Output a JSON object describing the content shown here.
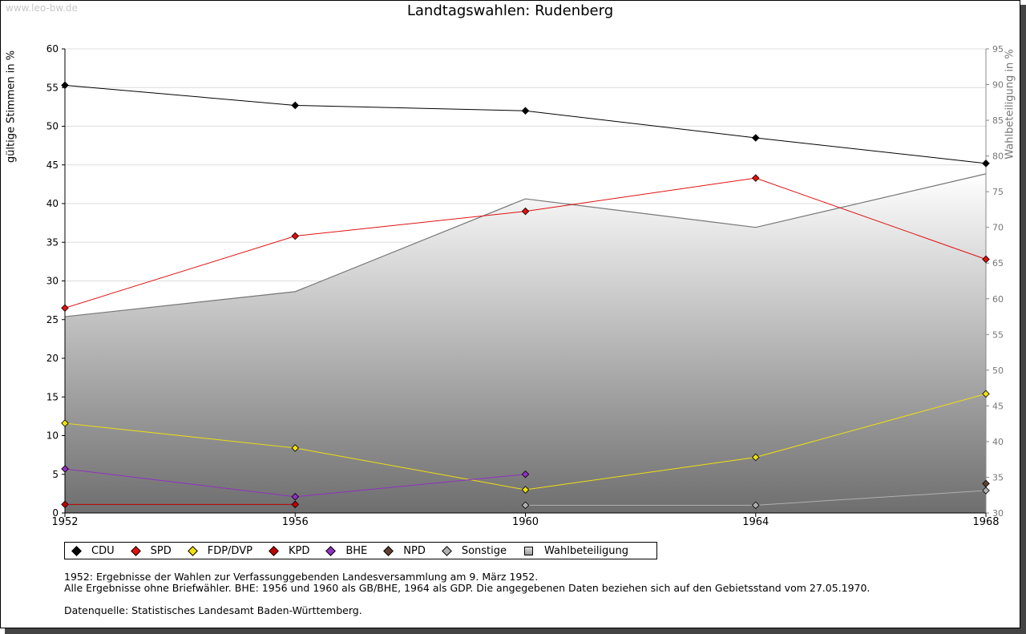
{
  "watermark": "www.leo-bw.de",
  "chart_data": {
    "type": "line",
    "title": "Landtagswahlen: Rudenberg",
    "ylabel": "gültige Stimmen in %",
    "ylabel_right": "Wahlbeteiligung in %",
    "x": [
      1952,
      1956,
      1960,
      1964,
      1968
    ],
    "ylim": [
      0,
      60
    ],
    "y_ticks": [
      0,
      5,
      10,
      15,
      20,
      25,
      30,
      35,
      40,
      45,
      50,
      55,
      60
    ],
    "ylim_right": [
      30,
      95
    ],
    "y_ticks_right": [
      30,
      35,
      40,
      45,
      50,
      55,
      60,
      65,
      70,
      75,
      80,
      85,
      90,
      95
    ],
    "series": [
      {
        "name": "CDU",
        "color": "#000000",
        "values": [
          55.3,
          52.7,
          52.0,
          48.5,
          45.2
        ]
      },
      {
        "name": "SPD",
        "color": "#e01010",
        "values": [
          26.5,
          35.8,
          39.0,
          43.3,
          32.8
        ]
      },
      {
        "name": "FDP/DVP",
        "color": "#f0e010",
        "values": [
          11.6,
          8.4,
          3.0,
          7.2,
          15.4
        ]
      },
      {
        "name": "KPD",
        "color": "#c00000",
        "values": [
          1.1,
          1.1,
          null,
          null,
          null
        ]
      },
      {
        "name": "BHE",
        "color": "#9030c0",
        "values": [
          5.7,
          2.1,
          5.0,
          null,
          null
        ]
      },
      {
        "name": "NPD",
        "color": "#604030",
        "values": [
          null,
          null,
          null,
          null,
          3.8
        ]
      },
      {
        "name": "Sonstige",
        "color": "#b0b0b0",
        "values": [
          null,
          null,
          1.0,
          1.0,
          2.9
        ]
      }
    ],
    "area": {
      "name": "Wahlbeteiligung",
      "values": [
        57.5,
        61.0,
        74.0,
        70.0,
        77.5
      ]
    }
  },
  "notes": {
    "line1": "1952: Ergebnisse der Wahlen zur Verfassunggebenden Landesversammlung am 9. März 1952.",
    "line2": "Alle Ergebnisse ohne Briefwähler. BHE: 1956 und 1960 als GB/BHE, 1964 als GDP. Die angegebenen Daten beziehen sich auf den Gebietsstand vom 27.05.1970.",
    "line3": "Datenquelle: Statistisches Landesamt Baden-Württemberg."
  }
}
